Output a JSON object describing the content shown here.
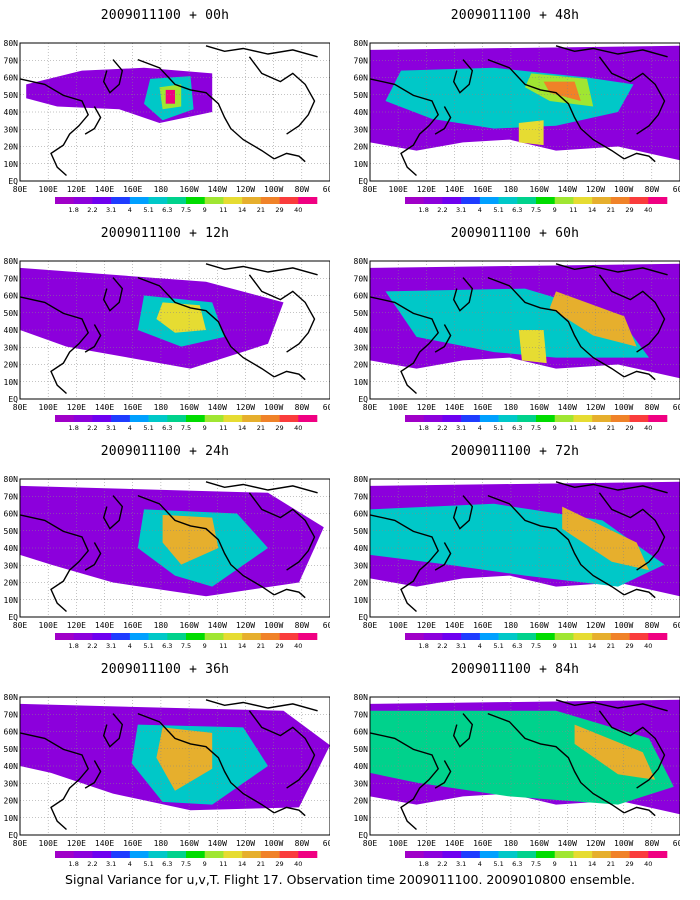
{
  "panels": [
    {
      "title": "2009011100 + 00h"
    },
    {
      "title": "2009011100 + 48h"
    },
    {
      "title": "2009011100 + 12h"
    },
    {
      "title": "2009011100 + 60h"
    },
    {
      "title": "2009011100 + 24h"
    },
    {
      "title": "2009011100 + 72h"
    },
    {
      "title": "2009011100 + 36h"
    },
    {
      "title": "2009011100 + 84h"
    }
  ],
  "axes": {
    "lon_labels": [
      "80E",
      "100E",
      "120E",
      "140E",
      "160E",
      "180",
      "160W",
      "140W",
      "120W",
      "100W",
      "80W",
      "60W"
    ],
    "lat_labels": [
      "80N",
      "70N",
      "60N",
      "50N",
      "40N",
      "30N",
      "20N",
      "10N",
      "EQ"
    ]
  },
  "colorbar": {
    "labels": [
      "1.8",
      "2.2",
      "3.1",
      "4",
      "5.1",
      "6.3",
      "7.5",
      "9",
      "11",
      "14",
      "21",
      "29",
      "40"
    ],
    "colors": [
      "#a000c8",
      "#8c00dc",
      "#6e00f0",
      "#1e3cff",
      "#00a0ff",
      "#00c8c8",
      "#00d28c",
      "#00dc00",
      "#a0e632",
      "#e6dc32",
      "#e6af2d",
      "#f08228",
      "#fa3c3c",
      "#f00082"
    ]
  },
  "caption": "Signal Variance for u,v,T. Flight 17. Observation time 2009011100. 2009010800 ensemble."
}
